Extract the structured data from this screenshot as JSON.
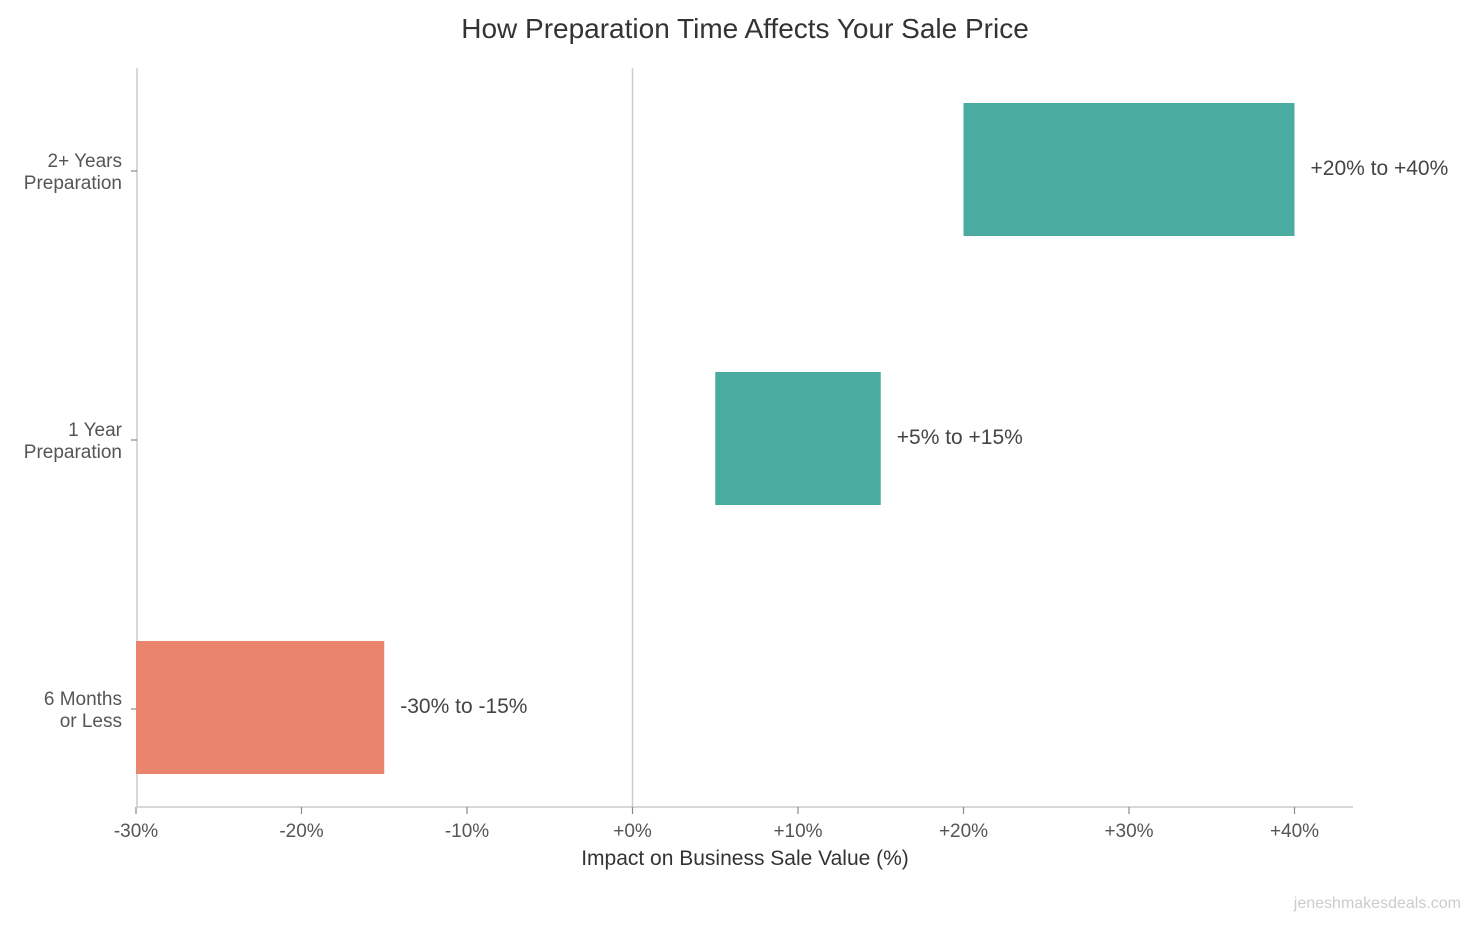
{
  "chart_data": {
    "type": "bar",
    "orientation": "horizontal",
    "title": "How Preparation Time Affects Your Sale Price",
    "xlabel": "Impact on Business Sale Value (%)",
    "ylabel": "",
    "xlim": [
      -30,
      43.5
    ],
    "x_ticks": [
      {
        "value": -30,
        "label": "-30%"
      },
      {
        "value": -20,
        "label": "-20%"
      },
      {
        "value": -10,
        "label": "-10%"
      },
      {
        "value": 0,
        "label": "+0%"
      },
      {
        "value": 10,
        "label": "+10%"
      },
      {
        "value": 20,
        "label": "+20%"
      },
      {
        "value": 30,
        "label": "+30%"
      },
      {
        "value": 40,
        "label": "+40%"
      }
    ],
    "categories": [
      {
        "lines": [
          "2+ Years",
          "Preparation"
        ]
      },
      {
        "lines": [
          "1 Year",
          "Preparation"
        ]
      },
      {
        "lines": [
          "6 Months",
          "or Less"
        ]
      }
    ],
    "ranges": [
      {
        "start": 20,
        "end": 40,
        "label": "+20% to +40%",
        "color": "#4aaba0"
      },
      {
        "start": 5,
        "end": 15,
        "label": "+5% to +15%",
        "color": "#4aaba0"
      },
      {
        "start": -30,
        "end": -15,
        "label": "-30% to -15%",
        "color": "#ea846c"
      }
    ],
    "reference_line": 0,
    "grid": false,
    "legend": "none"
  },
  "watermark": "jeneshmakesdeals.com",
  "colors": {
    "positive": "#4aaba0",
    "negative": "#ea846c",
    "axis": "#cccccc",
    "text": "#333333"
  }
}
